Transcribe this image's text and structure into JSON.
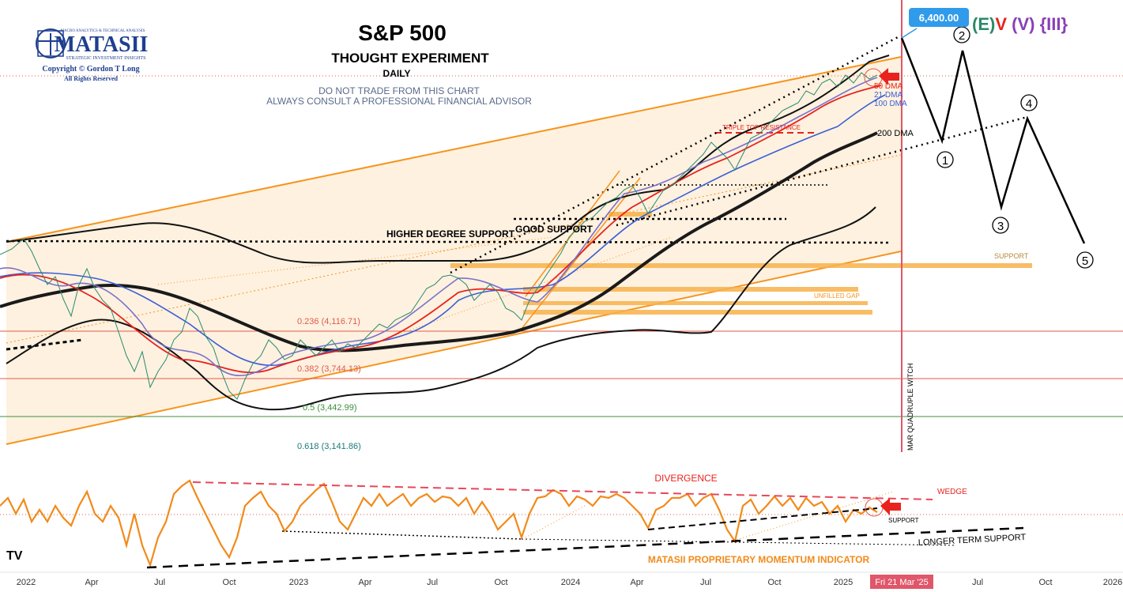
{
  "header": {
    "title": "S&P 500",
    "subtitle": "THOUGHT EXPERIMENT",
    "timeframe": "DAILY",
    "warning1": "DO NOT TRADE FROM THIS CHART",
    "warning2": "ALWAYS CONSULT A PROFESSIONAL FINANCIAL ADVISOR"
  },
  "logo": {
    "top_text": "MACRO ANALYTICS & TECHNICAL ANALYSIS",
    "name": "MATASII",
    "tagline": "STRATEGIC INVESTMENT INSIGHTS",
    "copyright": "Copyright © Gordon T Long",
    "rights": "All Rights Reserved"
  },
  "price_flag": {
    "value": "6,400.00",
    "color": "#2f9bea"
  },
  "wave_label": {
    "E": "(E)",
    "V": "V",
    "Vp": "(V)",
    "III": "{III}"
  },
  "chart_data": [
    {
      "type": "line",
      "title": "S&P 500",
      "x_axis_labels": [
        "2022",
        "Apr",
        "Jul",
        "Oct",
        "2023",
        "Apr",
        "Jul",
        "Oct",
        "2024",
        "Apr",
        "Jul",
        "Oct",
        "2025",
        "Fri 21 Mar '25",
        "Jul",
        "Oct",
        "2026"
      ],
      "fib_levels": [
        {
          "label": "0.236 (4,116.71)",
          "value": 4116.71
        },
        {
          "label": "0.382 (3,744.13)",
          "value": 3744.13
        },
        {
          "label": "0.5 (3,442.99)",
          "value": 3442.99
        },
        {
          "label": "0.618 (3,141.86)",
          "value": 3141.86
        }
      ],
      "moving_averages": [
        "50 DMA",
        "21 DMA",
        "100 DMA",
        "200 DMA"
      ],
      "annotations": [
        "HIGHER DEGREE SUPPORT",
        "GOOD SUPPORT",
        "TRIPLE TOP RESISTANCE",
        "UNFILLED GAP",
        "SUPPORT",
        "MAR QUADRUPLE WITCH"
      ],
      "projection_waves": [
        "1",
        "2",
        "3",
        "4",
        "5"
      ],
      "target": 6400
    },
    {
      "type": "line",
      "title": "MATASII PROPRIETARY MOMENTUM INDICATOR",
      "annotations": [
        "DIVERGENCE",
        "WEDGE",
        "SUPPORT",
        "LONGER TERM SUPPORT"
      ]
    }
  ],
  "colors": {
    "channel": "#f7941d",
    "ma21": "#7a72c9",
    "ma50": "#e8231d",
    "ma100": "#3b5fd4",
    "ma200": "#1a1a1a",
    "bands": "#111111",
    "witch": "#e0566a",
    "momentum": "#f28a1a",
    "fib_red": "#e05a4a",
    "fib_green": "#3d8f3d",
    "fib_teal": "#1b7a7a"
  },
  "tv_logo": "TV"
}
